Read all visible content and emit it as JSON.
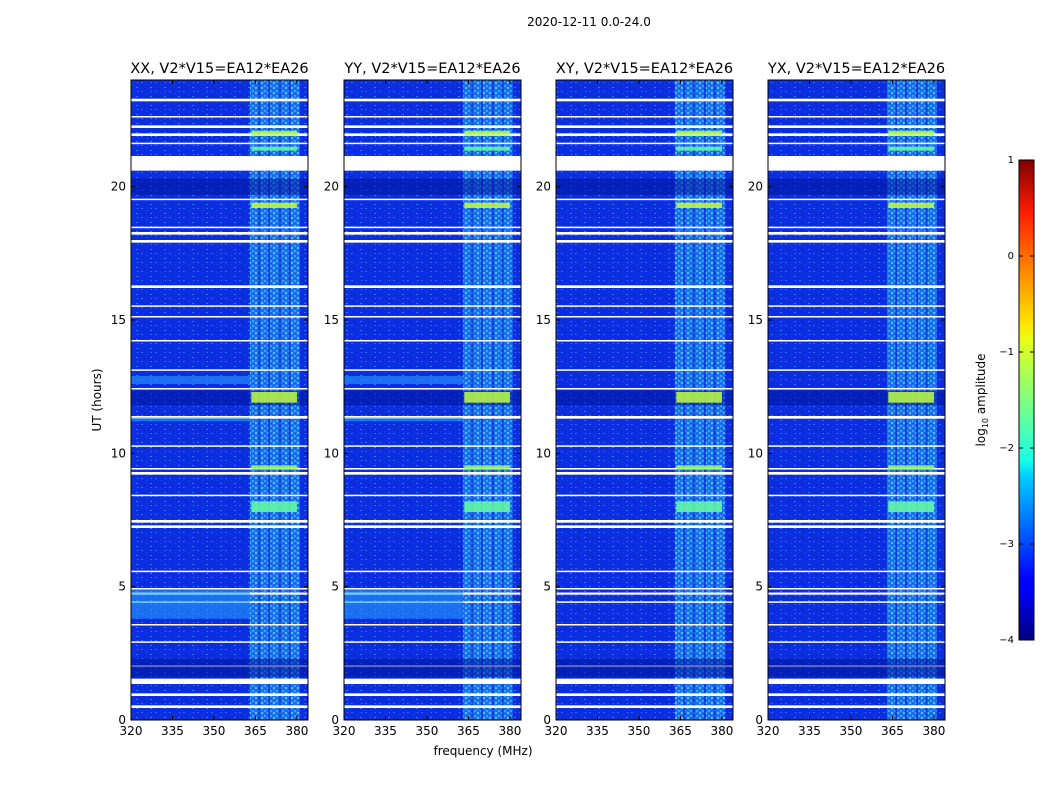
{
  "figure_title": "2020-12-11 0.0-24.0",
  "chart_data": {
    "type": "heatmap",
    "suptitle": "2020-12-11 0.0-24.0",
    "xlabel": "frequency (MHz)",
    "ylabel": "UT (hours)",
    "xlim": [
      320,
      384
    ],
    "ylim": [
      0,
      24
    ],
    "x_ticks": [
      320,
      335,
      350,
      365,
      380
    ],
    "y_ticks": [
      0,
      5,
      10,
      15,
      20
    ],
    "panels": [
      {
        "title": "XX, V2*V15=EA12*EA26"
      },
      {
        "title": "YY, V2*V15=EA12*EA26"
      },
      {
        "title": "XY, V2*V15=EA12*EA26"
      },
      {
        "title": "YX, V2*V15=EA12*EA26"
      }
    ],
    "colorbar": {
      "label_main": "log",
      "label_sub": "10",
      "label_rest": " amplitude",
      "min": -4,
      "max": 1,
      "ticks": [
        1,
        0,
        -1,
        -2,
        -3,
        -4
      ],
      "tick_labels": [
        "1",
        "0",
        "−1",
        "−2",
        "−3",
        "−4"
      ]
    },
    "flagged_time_bands_hours": [
      [
        0.45,
        0.55
      ],
      [
        0.9,
        1.0
      ],
      [
        1.35,
        1.55
      ],
      [
        2.0,
        2.05
      ],
      [
        2.9,
        2.95
      ],
      [
        3.55,
        3.6
      ],
      [
        4.4,
        4.45
      ],
      [
        4.7,
        4.78
      ],
      [
        4.9,
        4.95
      ],
      [
        5.55,
        5.6
      ],
      [
        7.2,
        7.3
      ],
      [
        7.4,
        7.5
      ],
      [
        8.4,
        8.45
      ],
      [
        9.2,
        9.3
      ],
      [
        9.4,
        9.45
      ],
      [
        10.25,
        10.3
      ],
      [
        11.3,
        11.4
      ],
      [
        12.4,
        12.45
      ],
      [
        13.1,
        13.15
      ],
      [
        14.2,
        14.25
      ],
      [
        15.1,
        15.15
      ],
      [
        15.5,
        15.55
      ],
      [
        16.2,
        16.3
      ],
      [
        17.9,
        18.0
      ],
      [
        18.2,
        18.3
      ],
      [
        18.45,
        18.5
      ],
      [
        19.5,
        19.55
      ],
      [
        20.6,
        21.15
      ],
      [
        21.6,
        21.65
      ],
      [
        21.9,
        22.0
      ],
      [
        22.2,
        22.3
      ],
      [
        22.6,
        22.65
      ],
      [
        23.2,
        23.3
      ]
    ],
    "rfi_channel_band_mhz": [
      363,
      381
    ]
  }
}
